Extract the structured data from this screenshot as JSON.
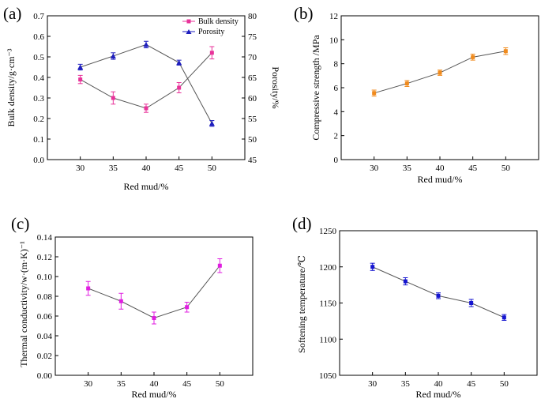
{
  "chart_data": [
    {
      "type": "line",
      "panel_label": "(a)",
      "xlabel": "Red mud/%",
      "ylabel": "Bulk density/g·cm⁻³",
      "y2label": "Porosity/%",
      "x": [
        30,
        35,
        40,
        45,
        50
      ],
      "xlim": [
        25,
        55
      ],
      "ylim": [
        0,
        0.7
      ],
      "y2lim": [
        45,
        80
      ],
      "xticks": [
        30,
        35,
        40,
        45,
        50
      ],
      "yticks": [
        "0.0",
        "0.1",
        "0.2",
        "0.3",
        "0.4",
        "0.5",
        "0.6",
        "0.7"
      ],
      "y2ticks": [
        "45",
        "50",
        "55",
        "60",
        "65",
        "70",
        "75",
        "80"
      ],
      "series": [
        {
          "name": "Bulk density",
          "axis": "left",
          "values": [
            0.39,
            0.3,
            0.25,
            0.35,
            0.52
          ],
          "errors": [
            0.02,
            0.03,
            0.02,
            0.025,
            0.03
          ],
          "color": "#e8339a",
          "marker": "square"
        },
        {
          "name": "Porosity",
          "axis": "right",
          "values": [
            67.5,
            70.2,
            73.0,
            68.6,
            53.8
          ],
          "errors": [
            0.7,
            0.8,
            0.8,
            0.6,
            0.7
          ],
          "color": "#1e1ebe",
          "marker": "triangle"
        }
      ],
      "legend_position": "top-right"
    },
    {
      "type": "line",
      "panel_label": "(b)",
      "xlabel": "Red mud/%",
      "ylabel": "Compressive strength /MPa",
      "x": [
        30,
        35,
        40,
        45,
        50
      ],
      "xlim": [
        25,
        55
      ],
      "ylim": [
        0,
        12
      ],
      "xticks": [
        30,
        35,
        40,
        45,
        50
      ],
      "yticks": [
        "0",
        "2",
        "4",
        "6",
        "8",
        "10",
        "12"
      ],
      "series": [
        {
          "name": "Compressive strength",
          "values": [
            5.55,
            6.35,
            7.25,
            8.55,
            9.05
          ],
          "errors": [
            0.25,
            0.25,
            0.22,
            0.25,
            0.28
          ],
          "color": "#f08a1c",
          "marker": "square"
        }
      ]
    },
    {
      "type": "line",
      "panel_label": "(c)",
      "xlabel": "Red mud/%",
      "ylabel": "Thermal conductivity/w·(m·K)⁻¹",
      "x": [
        30,
        35,
        40,
        45,
        50
      ],
      "xlim": [
        25,
        55
      ],
      "ylim": [
        0,
        0.14
      ],
      "xticks": [
        30,
        35,
        40,
        45,
        50
      ],
      "yticks": [
        "0.00",
        "0.02",
        "0.04",
        "0.06",
        "0.08",
        "0.10",
        "0.12",
        "0.14"
      ],
      "series": [
        {
          "name": "Thermal conductivity",
          "values": [
            0.088,
            0.075,
            0.058,
            0.069,
            0.111
          ],
          "errors": [
            0.007,
            0.008,
            0.006,
            0.005,
            0.007
          ],
          "color": "#e01ee0",
          "marker": "square"
        }
      ]
    },
    {
      "type": "line",
      "panel_label": "(d)",
      "xlabel": "Red mud/%",
      "ylabel": "Softening temperature/℃",
      "x": [
        30,
        35,
        40,
        45,
        50
      ],
      "xlim": [
        25,
        55
      ],
      "ylim": [
        1050,
        1250
      ],
      "xticks": [
        30,
        35,
        40,
        45,
        50
      ],
      "yticks": [
        "1050",
        "1100",
        "1150",
        "1200",
        "1250"
      ],
      "series": [
        {
          "name": "Softening temperature",
          "values": [
            1200,
            1180,
            1160,
            1150,
            1130
          ],
          "errors": [
            5,
            5,
            4,
            5,
            4
          ],
          "color": "#1515d0",
          "marker": "square"
        }
      ]
    }
  ]
}
